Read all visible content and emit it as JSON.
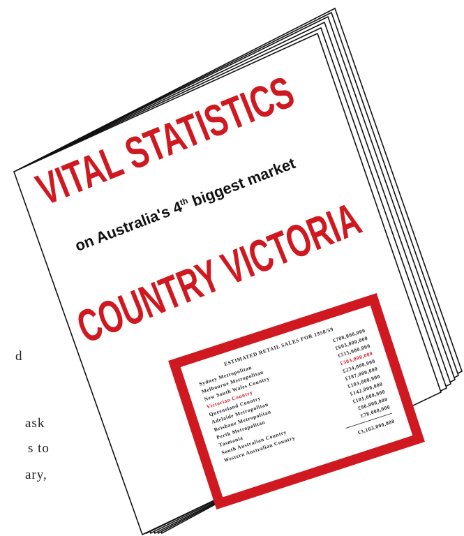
{
  "cover": {
    "title": "VITAL STATISTICS",
    "subtitle_before": "on Australia's",
    "subtitle_number": "4",
    "subtitle_suffix": "th",
    "subtitle_after": "biggest market",
    "region": "COUNTRY VICTORIA"
  },
  "table": {
    "title": "ESTIMATED RETAIL SALES FOR 1958/59",
    "rows": [
      [
        "Sydney Metropolitan",
        "£708,000,000"
      ],
      [
        "Melbourne Metropolitan",
        "£603,000,000"
      ],
      [
        "New South Wales Country",
        "£515,000,000"
      ],
      [
        "Victorian Country",
        "£303,000,000"
      ],
      [
        "Queensland Country",
        "£234,000,000"
      ],
      [
        "Adelaide Metropolitan",
        "£187,000,000"
      ],
      [
        "Brisbane Metropolitan",
        "£183,000,000"
      ],
      [
        "Perth Metropolitan",
        "£142,000,000"
      ],
      [
        "Tasmania",
        "£101,000,000"
      ],
      [
        "South Australian Country",
        "£90,000,000"
      ],
      [
        "Western Australian Country",
        "£78,000,000"
      ]
    ],
    "total": "£3,163,000,000"
  },
  "body_fragments": [
    "d",
    "ask",
    "s to",
    "ary,"
  ]
}
